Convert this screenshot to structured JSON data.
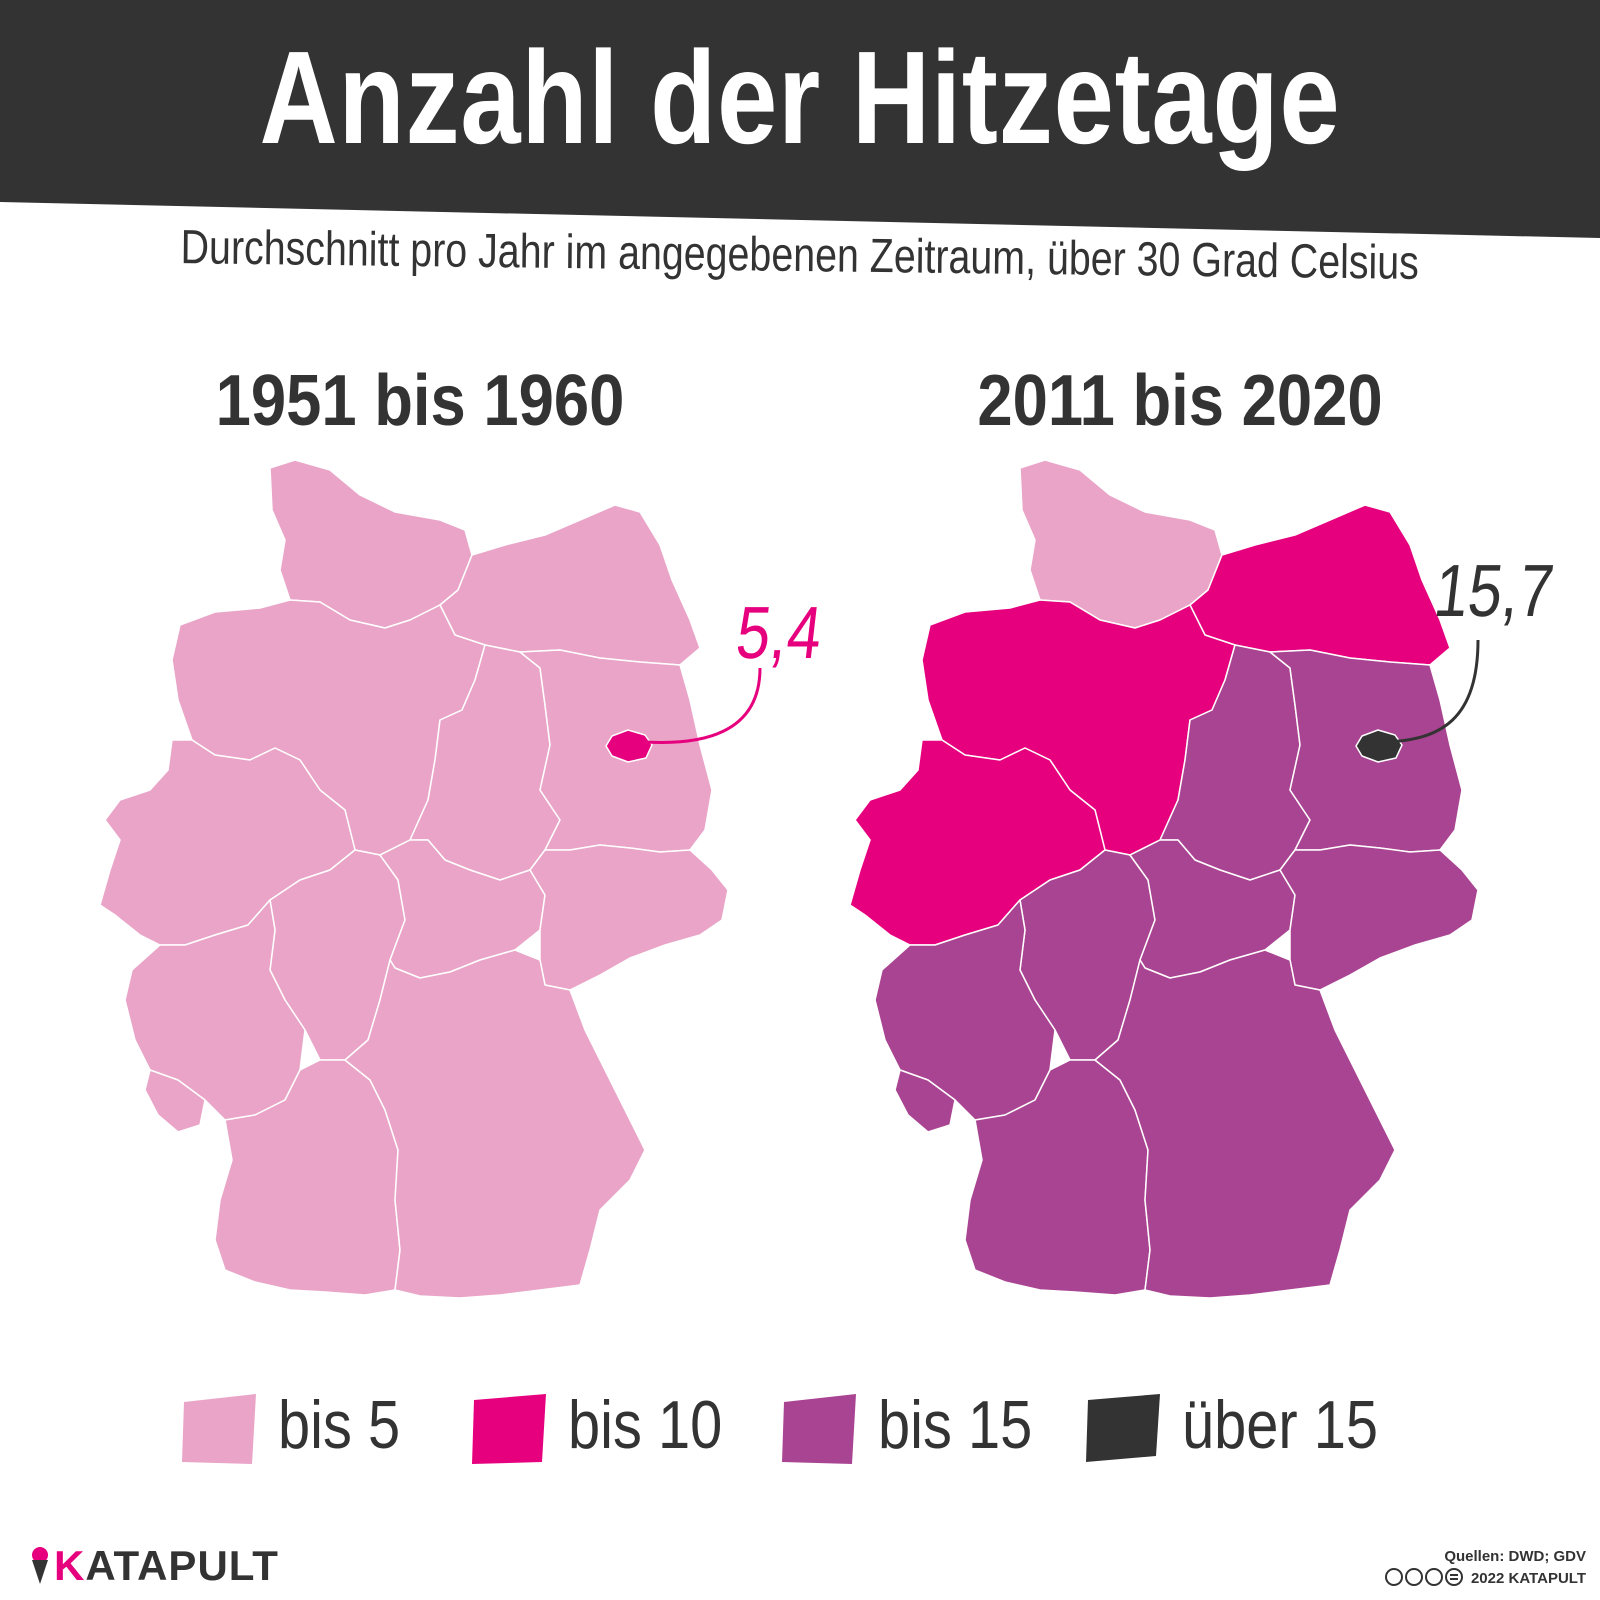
{
  "header": {
    "title": "Anzahl der Hitzetage",
    "subtitle": "Durchschnitt pro Jahr im angegebenen Zeitraum, über 30 Grad Celsius"
  },
  "maps": [
    {
      "period": "1951 bis 1960",
      "regions": {
        "schleswig-holstein": "bis 5",
        "mecklenburg-vorpommern": "bis 5",
        "niedersachsen": "bis 5",
        "nordrhein-westfalen": "bis 5",
        "sachsen-anhalt": "bis 5",
        "brandenburg": "bis 5",
        "berlin": "bis 10",
        "hessen": "bis 5",
        "thueringen": "bis 5",
        "sachsen": "bis 5",
        "rheinland-pfalz": "bis 5",
        "saarland": "bis 5",
        "baden-wuerttemberg": "bis 5",
        "bayern": "bis 5"
      },
      "callout": {
        "region": "berlin",
        "value": "5,4",
        "color": "#e6007e"
      }
    },
    {
      "period": "2011 bis 2020",
      "regions": {
        "schleswig-holstein": "bis 5",
        "mecklenburg-vorpommern": "bis 10",
        "niedersachsen": "bis 10",
        "nordrhein-westfalen": "bis 10",
        "sachsen-anhalt": "bis 15",
        "brandenburg": "bis 15",
        "berlin": "über 15",
        "hessen": "bis 15",
        "thueringen": "bis 15",
        "sachsen": "bis 15",
        "rheinland-pfalz": "bis 15",
        "saarland": "bis 15",
        "baden-wuerttemberg": "bis 15",
        "bayern": "bis 15"
      },
      "callout": {
        "region": "berlin",
        "value": "15,7",
        "color": "#333333"
      }
    }
  ],
  "legend": [
    {
      "label": "bis 5",
      "color": "#e9a4c7"
    },
    {
      "label": "bis 10",
      "color": "#e6007e"
    },
    {
      "label": "bis 15",
      "color": "#a94492"
    },
    {
      "label": "über 15",
      "color": "#333333"
    }
  ],
  "colors": {
    "banner": "#333333",
    "brand": "#e6007e"
  },
  "footer": {
    "logo": "KATAPULT",
    "logo_icon": "ice-cream-icon",
    "sources": "Quellen: DWD; GDV",
    "copyright": "2022 KATAPULT",
    "license_icons": "creative-commons-by-nc-nd-icon"
  }
}
